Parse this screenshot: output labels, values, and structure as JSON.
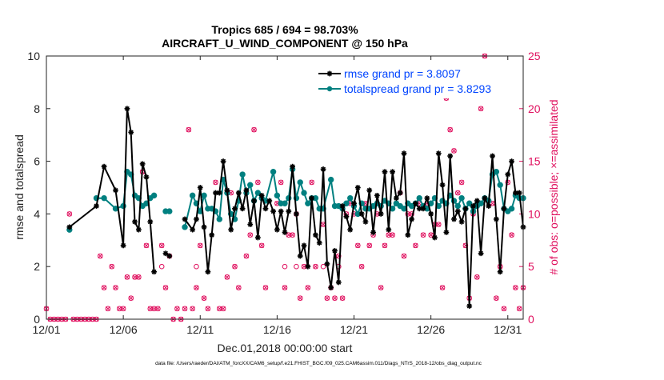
{
  "chart_data": {
    "type": "line",
    "title_line1": "Tropics 685 / 694 = 98.703%",
    "title_line2": "AIRCRAFT_U_WIND_COMPONENT @ 150 hPa",
    "xlabel": "Dec.01,2018 00:00:00 start",
    "ylabel_left": "rmse and totalspread",
    "ylabel_right": "# of obs: o=possible; ×=assimilated",
    "footer": "data file: /Users/raeder/DAI/ATM_forcXX/CAM6_setup/f.e21.FHIST_BGC.f09_025.CAM6assim.011/Diags_NTrS_2018-12/obs_diag_output.nc",
    "xlim": [
      1,
      32
    ],
    "ylim_left": [
      0,
      10
    ],
    "ylim_right": [
      0,
      25
    ],
    "xticks": [
      1,
      6,
      11,
      16,
      21,
      26,
      31
    ],
    "xtick_labels": [
      "12/01",
      "12/06",
      "12/11",
      "12/16",
      "12/21",
      "12/26",
      "12/31"
    ],
    "yticks_left": [
      0,
      2,
      4,
      6,
      8,
      10
    ],
    "yticks_right": [
      0,
      5,
      10,
      15,
      20,
      25
    ],
    "colors": {
      "rmse": "#000000",
      "spread": "#008080",
      "obs": "#e0115f",
      "legend_text": "#0044ff"
    },
    "legend": [
      {
        "name": "rmse grand pr = 3.8097",
        "series": "rmse"
      },
      {
        "name": "totalspread grand pr = 3.8293",
        "series": "spread"
      }
    ],
    "series": [
      {
        "name": "rmse",
        "points": [
          [
            2.5,
            3.5
          ],
          [
            4.25,
            4.3
          ],
          [
            4.75,
            5.8
          ],
          [
            5.5,
            4.9
          ],
          [
            6,
            2.8
          ],
          [
            6.25,
            8.0
          ],
          [
            6.5,
            7.1
          ],
          [
            6.75,
            3.7
          ],
          [
            7,
            3.4
          ],
          [
            7.25,
            5.9
          ],
          [
            7.5,
            5.4
          ],
          [
            7.75,
            3.7
          ],
          [
            8,
            1.8
          ],
          null,
          [
            8.75,
            2.5
          ],
          [
            9,
            2.4
          ],
          null,
          [
            10,
            3.8
          ],
          [
            10.5,
            3.4
          ],
          [
            10.75,
            3.8
          ],
          [
            11,
            5.0
          ],
          [
            11.25,
            3.5
          ],
          [
            11.5,
            1.8
          ],
          [
            11.75,
            3.2
          ],
          [
            12,
            4.8
          ],
          [
            12.25,
            4.8
          ],
          [
            12.5,
            6.0
          ],
          [
            12.75,
            4.9
          ],
          [
            13,
            3.4
          ],
          [
            13.25,
            4.2
          ],
          [
            13.5,
            4.8
          ],
          [
            13.75,
            4.2
          ],
          [
            14,
            4.9
          ],
          [
            14.25,
            3.6
          ],
          [
            14.5,
            4.5
          ],
          [
            14.75,
            3.1
          ],
          [
            15,
            4.7
          ],
          [
            15.25,
            4.2
          ],
          [
            15.5,
            4.5
          ],
          [
            15.75,
            4.1
          ],
          [
            16,
            3.4
          ],
          [
            16.25,
            4.1
          ],
          [
            16.5,
            3.3
          ],
          [
            16.75,
            4.1
          ],
          [
            17,
            5.8
          ],
          [
            17.25,
            4.0
          ],
          [
            17.5,
            2.4
          ],
          [
            17.75,
            2.8
          ],
          [
            18,
            2.0
          ],
          [
            18.25,
            4.6
          ],
          [
            18.5,
            3.2
          ],
          [
            18.75,
            2.9
          ],
          [
            19,
            5.7
          ],
          [
            19.25,
            2.1
          ],
          [
            19.5,
            1.2
          ],
          [
            19.75,
            2.6
          ],
          [
            20,
            1.4
          ],
          [
            20.25,
            4.3
          ],
          [
            20.5,
            3.9
          ],
          [
            20.75,
            3.4
          ],
          [
            21,
            4.4
          ],
          [
            21.25,
            5.0
          ],
          [
            21.5,
            4.0
          ],
          [
            21.75,
            3.7
          ],
          [
            22,
            4.9
          ],
          [
            22.25,
            3.3
          ],
          [
            22.5,
            4.7
          ],
          [
            22.75,
            4.0
          ],
          [
            23,
            5.6
          ],
          [
            23.25,
            3.4
          ],
          [
            23.5,
            5.6
          ],
          [
            23.75,
            4.6
          ],
          [
            24,
            4.8
          ],
          [
            24.25,
            6.3
          ],
          [
            24.5,
            3.2
          ],
          [
            24.75,
            3.8
          ],
          [
            25,
            4.4
          ],
          [
            25.25,
            4.2
          ],
          [
            25.5,
            4.2
          ],
          [
            25.75,
            4.6
          ],
          [
            26,
            4.0
          ],
          [
            26.25,
            3.1
          ],
          [
            26.5,
            6.3
          ],
          [
            26.75,
            5.1
          ],
          [
            27,
            3.3
          ],
          [
            27.25,
            6.2
          ],
          [
            27.5,
            3.8
          ],
          [
            27.75,
            4.1
          ],
          [
            28,
            3.7
          ],
          [
            28.25,
            4.2
          ],
          [
            28.5,
            0.5
          ],
          [
            28.75,
            4.3
          ],
          [
            29,
            4.5
          ],
          [
            29.25,
            2.5
          ],
          [
            29.5,
            4.6
          ],
          [
            29.75,
            4.3
          ],
          [
            30,
            6.2
          ],
          [
            30.25,
            3.8
          ],
          [
            30.5,
            1.8
          ],
          [
            30.75,
            4.2
          ],
          [
            31,
            5.5
          ],
          [
            31.25,
            6.0
          ],
          [
            31.5,
            4.8
          ],
          [
            31.75,
            4.8
          ],
          [
            32,
            3.5
          ]
        ]
      },
      {
        "name": "totalspread",
        "points": [
          [
            2.5,
            3.4
          ],
          null,
          [
            4.25,
            4.6
          ],
          [
            4.75,
            4.6
          ],
          [
            5.5,
            4.2
          ],
          [
            6,
            4.3
          ],
          [
            6.25,
            5.6
          ],
          [
            6.5,
            5.5
          ],
          [
            6.75,
            4.7
          ],
          [
            7,
            4.6
          ],
          [
            7.25,
            4.3
          ],
          [
            7.5,
            4.4
          ],
          [
            7.75,
            4.6
          ],
          [
            8,
            4.7
          ],
          null,
          [
            8.75,
            4.1
          ],
          [
            9,
            4.1
          ],
          null,
          [
            10,
            3.5
          ],
          [
            10.5,
            4.7
          ],
          [
            10.75,
            4.4
          ],
          [
            11,
            4.1
          ],
          [
            11.25,
            4.7
          ],
          [
            11.5,
            4.2
          ],
          [
            11.75,
            4.2
          ],
          [
            12,
            4.1
          ],
          [
            12.25,
            3.8
          ],
          [
            12.5,
            5.3
          ],
          [
            12.75,
            4.8
          ],
          [
            13,
            4.0
          ],
          [
            13.25,
            3.8
          ],
          [
            13.5,
            4.5
          ],
          [
            13.75,
            5.5
          ],
          [
            14,
            4.8
          ],
          [
            14.25,
            5.1
          ],
          [
            14.5,
            4.5
          ],
          [
            14.75,
            4.8
          ],
          [
            15,
            4.6
          ],
          [
            15.25,
            4.5
          ],
          [
            15.75,
            5.6
          ],
          [
            16,
            4.7
          ],
          [
            16.25,
            4.4
          ],
          [
            16.5,
            4.4
          ],
          [
            16.75,
            4.6
          ],
          [
            17,
            5.7
          ],
          [
            17.25,
            4.6
          ],
          [
            17.5,
            5.2
          ],
          [
            17.75,
            4.8
          ],
          [
            18,
            4.4
          ],
          [
            18.25,
            4.6
          ],
          [
            18.5,
            4.6
          ],
          [
            18.75,
            4.2
          ],
          [
            19,
            4.2
          ],
          [
            19.5,
            5.3
          ],
          [
            19.75,
            4.3
          ],
          [
            20,
            4.3
          ],
          [
            20.25,
            4.2
          ],
          [
            20.5,
            4.4
          ],
          [
            20.75,
            4.6
          ],
          [
            21,
            4.3
          ],
          [
            21.25,
            4.0
          ],
          [
            21.5,
            4.4
          ],
          [
            21.75,
            4.2
          ],
          [
            22,
            4.2
          ],
          [
            22.25,
            4.3
          ],
          [
            22.5,
            4.4
          ],
          [
            22.75,
            4.3
          ],
          [
            23,
            4.5
          ],
          [
            23.25,
            4.4
          ],
          [
            23.5,
            4.2
          ],
          [
            23.75,
            4.4
          ],
          [
            24,
            4.3
          ],
          [
            24.25,
            4.2
          ],
          [
            24.5,
            4.4
          ],
          [
            24.75,
            4.3
          ],
          [
            25,
            4.4
          ],
          [
            25.25,
            4.6
          ],
          [
            25.5,
            4.3
          ],
          [
            25.75,
            4.2
          ],
          [
            26,
            4.4
          ],
          [
            26.25,
            4.6
          ],
          [
            26.5,
            4.3
          ],
          [
            26.75,
            4.5
          ],
          [
            27,
            4.4
          ],
          [
            27.25,
            4.7
          ],
          [
            27.5,
            4.5
          ],
          [
            27.75,
            4.3
          ],
          [
            28,
            4.6
          ],
          [
            28.25,
            4.2
          ],
          [
            28.5,
            4.4
          ],
          [
            28.75,
            4.1
          ],
          [
            29,
            4.3
          ],
          [
            29.25,
            4.4
          ],
          [
            29.5,
            4.6
          ],
          [
            29.75,
            4.5
          ],
          [
            30,
            5.5
          ],
          [
            30.25,
            5.6
          ],
          [
            30.5,
            5.1
          ],
          [
            30.75,
            4.2
          ],
          [
            31,
            4.1
          ],
          [
            31.25,
            4.2
          ],
          [
            31.5,
            4.7
          ],
          [
            31.75,
            4.6
          ],
          [
            32,
            4.6
          ]
        ]
      }
    ],
    "obs_counts": {
      "name": "# of obs",
      "possible_and_assimilated": [
        [
          1,
          1
        ],
        [
          1.25,
          0
        ],
        [
          1.5,
          0
        ],
        [
          1.75,
          0
        ],
        [
          2,
          0
        ],
        [
          2.25,
          0
        ],
        [
          2.5,
          10
        ],
        [
          2.75,
          0
        ],
        [
          3,
          0
        ],
        [
          3.25,
          0
        ],
        [
          3.5,
          0
        ],
        [
          3.75,
          0
        ],
        [
          4,
          0
        ],
        [
          4.25,
          0
        ],
        [
          4.5,
          6
        ],
        [
          4.75,
          3
        ],
        [
          5,
          1
        ],
        [
          5.25,
          5
        ],
        [
          5.5,
          3
        ],
        [
          5.75,
          1
        ],
        [
          6,
          1
        ],
        [
          6.25,
          4
        ],
        [
          6.5,
          2
        ],
        [
          6.75,
          4
        ],
        [
          7,
          4
        ],
        [
          7.25,
          14
        ],
        [
          7.5,
          7
        ],
        [
          7.75,
          1
        ],
        [
          8,
          1
        ],
        [
          8.25,
          1
        ],
        [
          8.5,
          7
        ],
        [
          8.75,
          3
        ],
        [
          9,
          6
        ],
        [
          9.25,
          0
        ],
        [
          9.5,
          1
        ],
        [
          9.75,
          0
        ],
        [
          10,
          1
        ],
        [
          10.25,
          18
        ],
        [
          10.5,
          1
        ],
        [
          10.75,
          3
        ],
        [
          11,
          7
        ],
        [
          11.25,
          2
        ],
        [
          11.5,
          1
        ],
        [
          12,
          13
        ],
        [
          12.25,
          1
        ],
        [
          12.5,
          1
        ],
        [
          12.75,
          4
        ],
        [
          13,
          12
        ],
        [
          13.25,
          5
        ],
        [
          13.5,
          3
        ],
        [
          14,
          6
        ],
        [
          14.25,
          8
        ],
        [
          14.5,
          18
        ],
        [
          14.75,
          13
        ],
        [
          15,
          7
        ],
        [
          15.25,
          3
        ],
        [
          16,
          11
        ],
        [
          16.25,
          13
        ],
        [
          16.5,
          3
        ],
        [
          16.75,
          8
        ],
        [
          17,
          8
        ],
        [
          17.25,
          10
        ],
        [
          17.5,
          2
        ],
        [
          17.75,
          5
        ],
        [
          18,
          3
        ],
        [
          18.25,
          13
        ],
        [
          18.5,
          5
        ],
        [
          19,
          9
        ],
        [
          19.25,
          2
        ],
        [
          19.5,
          3
        ],
        [
          19.75,
          2
        ],
        [
          20,
          6
        ],
        [
          20.25,
          2
        ],
        [
          20.5,
          10
        ],
        [
          20.75,
          11
        ],
        [
          21,
          10
        ],
        [
          21.25,
          7
        ],
        [
          21.5,
          5
        ],
        [
          21.75,
          11
        ],
        [
          22,
          7
        ],
        [
          22.25,
          8
        ],
        [
          22.5,
          10
        ],
        [
          22.75,
          3
        ],
        [
          23,
          7
        ],
        [
          23.25,
          8
        ],
        [
          23.5,
          8
        ],
        [
          23.75,
          11
        ],
        [
          24,
          12
        ],
        [
          24.25,
          6
        ],
        [
          24.5,
          10
        ],
        [
          24.75,
          10
        ],
        [
          25,
          7
        ],
        [
          25.25,
          11
        ],
        [
          25.5,
          8
        ],
        [
          25.75,
          11
        ],
        [
          26,
          8
        ],
        [
          26.25,
          9
        ],
        [
          26.5,
          9
        ],
        [
          26.75,
          3
        ],
        [
          27,
          21
        ],
        [
          27.25,
          18
        ],
        [
          27.5,
          16
        ],
        [
          27.75,
          12
        ],
        [
          28,
          13
        ],
        [
          28.25,
          7
        ],
        [
          28.5,
          2
        ],
        [
          28.75,
          10
        ],
        [
          29,
          4
        ],
        [
          29.25,
          20
        ],
        [
          29.5,
          25
        ],
        [
          29.75,
          23
        ],
        [
          30,
          11
        ],
        [
          30.25,
          2
        ],
        [
          30.5,
          5
        ],
        [
          30.75,
          1
        ],
        [
          31,
          13
        ],
        [
          31.25,
          8
        ],
        [
          31.5,
          3
        ],
        [
          31.75,
          1
        ],
        [
          32,
          3
        ]
      ],
      "possible_only": [
        [
          8.5,
          5
        ],
        [
          10.75,
          5
        ],
        [
          16.5,
          5
        ],
        [
          17.25,
          5
        ],
        [
          19,
          5
        ],
        [
          20,
          5
        ],
        [
          30.5,
          5
        ]
      ]
    }
  }
}
